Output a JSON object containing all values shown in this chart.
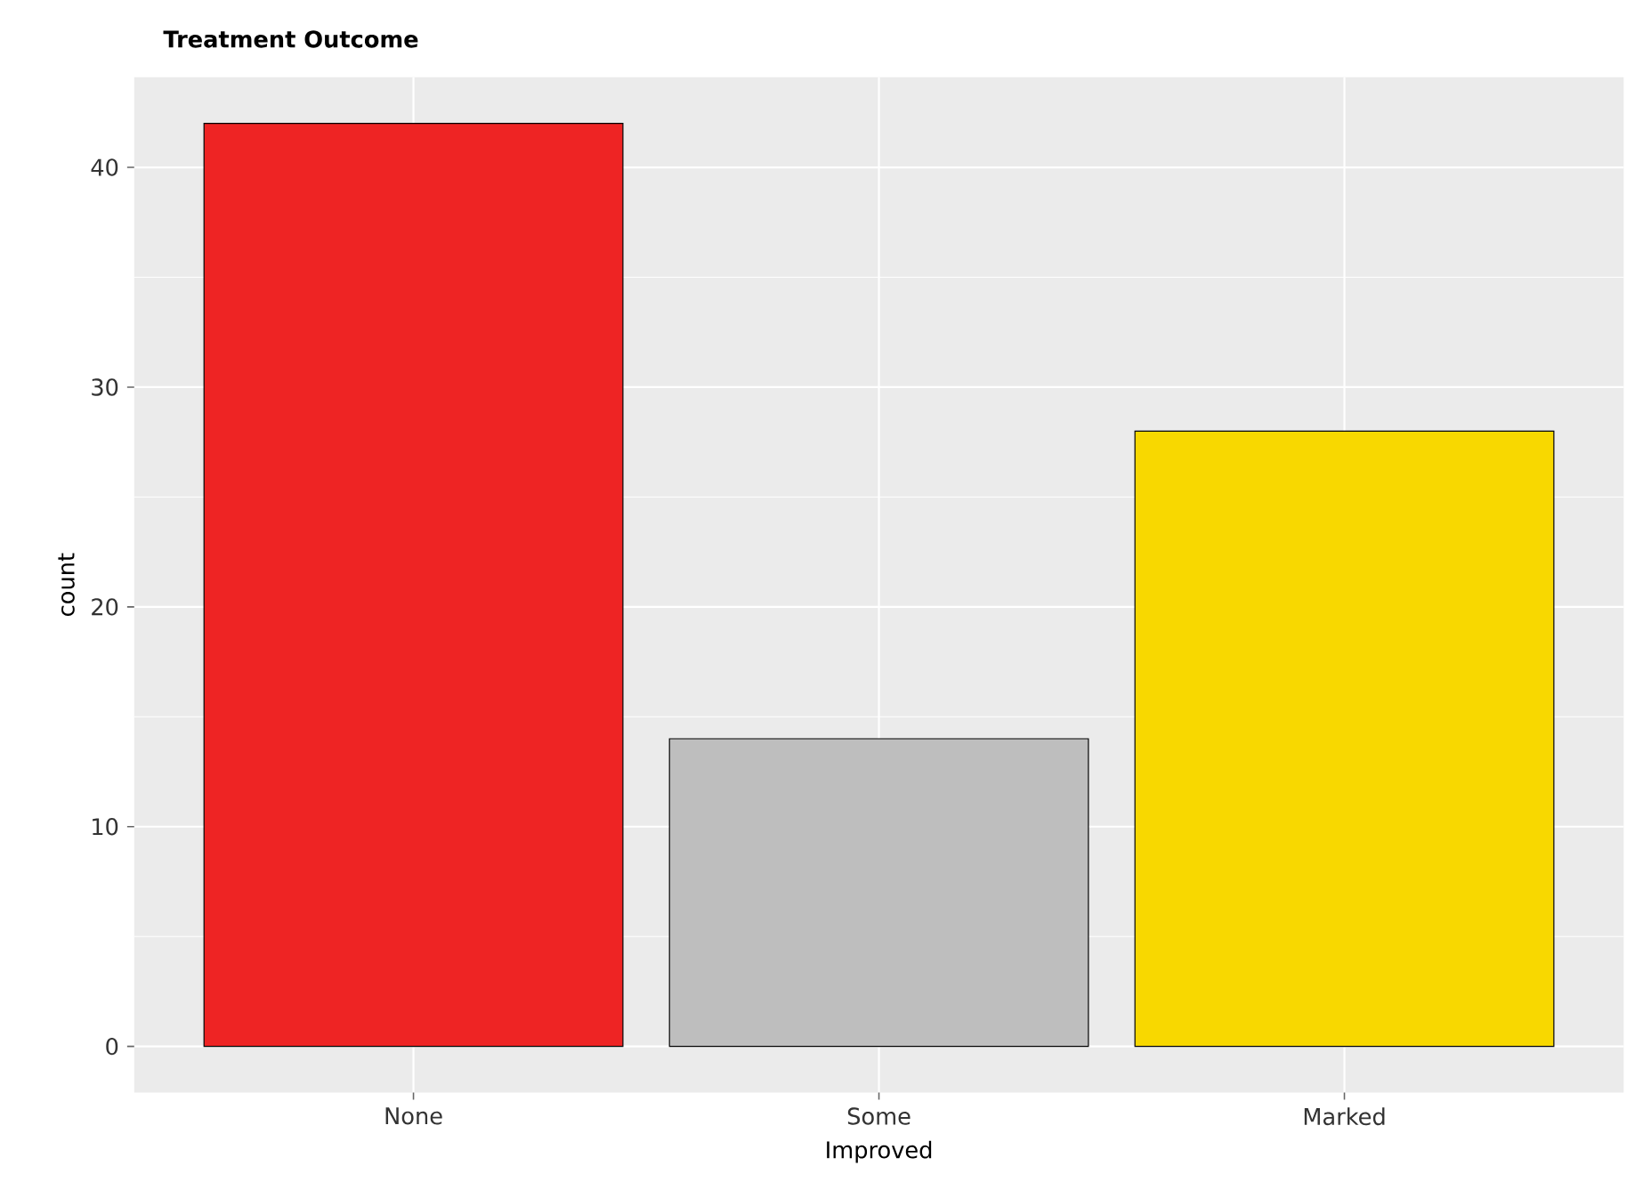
{
  "chart_data": {
    "type": "bar",
    "title": "Treatment Outcome",
    "xlabel": "Improved",
    "ylabel": "count",
    "categories": [
      "None",
      "Some",
      "Marked"
    ],
    "values": [
      42,
      14,
      28
    ],
    "colors": [
      "#ee2424",
      "#bebebe",
      "#f8d800"
    ],
    "ylim": [
      -2.1,
      44.1
    ],
    "yticks": [
      0,
      10,
      20,
      30,
      40
    ],
    "grid": true
  }
}
